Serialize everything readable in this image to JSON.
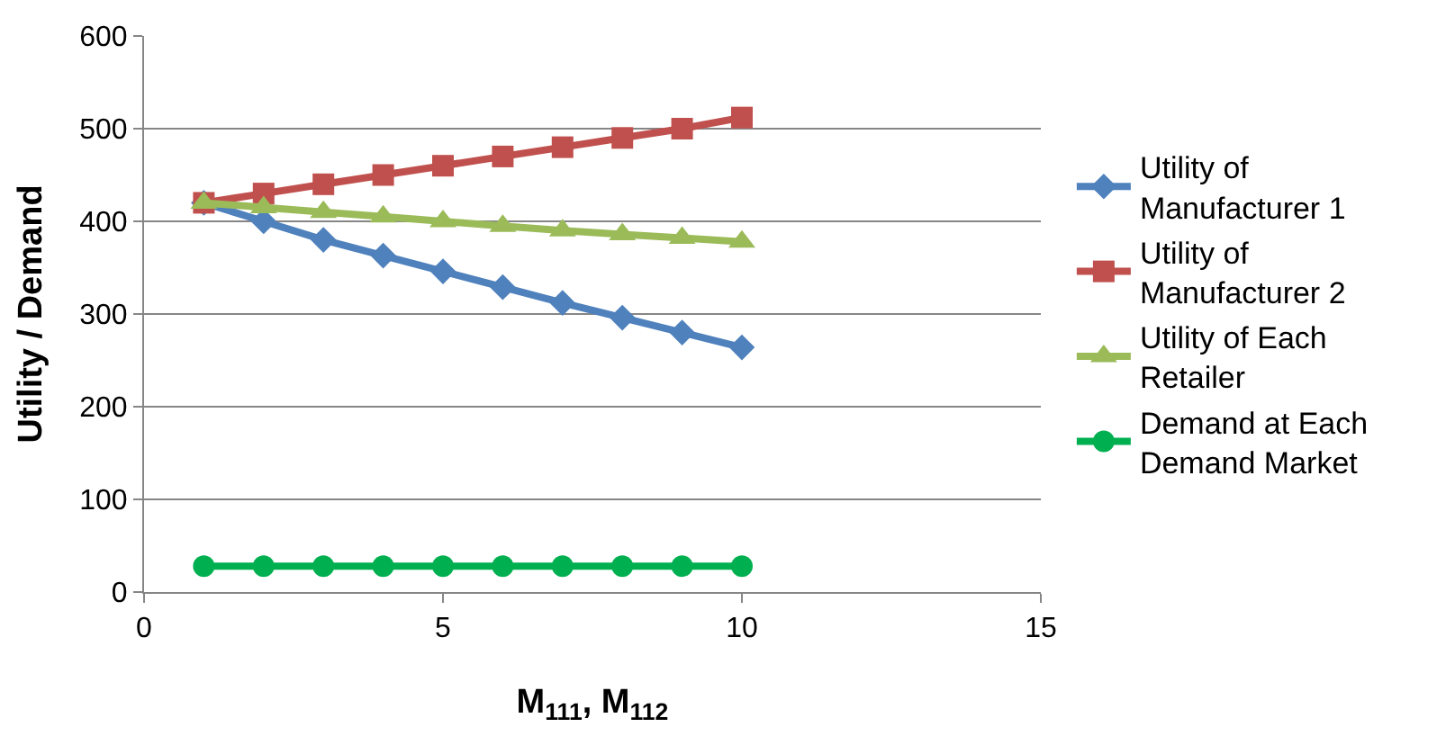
{
  "chart_data": {
    "type": "line",
    "xlabel": "M$_{111}$, M$_{112}$",
    "ylabel": "Utility / Demand",
    "x": [
      1,
      2,
      3,
      4,
      5,
      6,
      7,
      8,
      9,
      10
    ],
    "xlim": [
      0,
      15
    ],
    "xticks": [
      0,
      5,
      10,
      15
    ],
    "ylim": [
      0,
      600
    ],
    "yticks": [
      0,
      100,
      200,
      300,
      400,
      500,
      600
    ],
    "grid": "y",
    "legend": "right",
    "series": [
      {
        "name": "Utility of Manufacturer 1",
        "color": "#4f81bd",
        "marker": "diamond",
        "values": [
          420,
          400,
          380,
          363,
          346,
          329,
          312,
          296,
          280,
          264
        ]
      },
      {
        "name": "Utility of Manufacturer 2",
        "color": "#c0504d",
        "marker": "square",
        "values": [
          420,
          430,
          440,
          450,
          460,
          470,
          480,
          490,
          500,
          512
        ]
      },
      {
        "name": "Utility of Each Retailer",
        "color": "#9bbb59",
        "marker": "triangle",
        "values": [
          420,
          415,
          410,
          405,
          400,
          395,
          390,
          386,
          382,
          378
        ]
      },
      {
        "name": "Demand at Each Demand Market",
        "color": "#00b050",
        "marker": "circle",
        "values": [
          28,
          28,
          28,
          28,
          28,
          28,
          28,
          28,
          28,
          28
        ]
      }
    ]
  }
}
